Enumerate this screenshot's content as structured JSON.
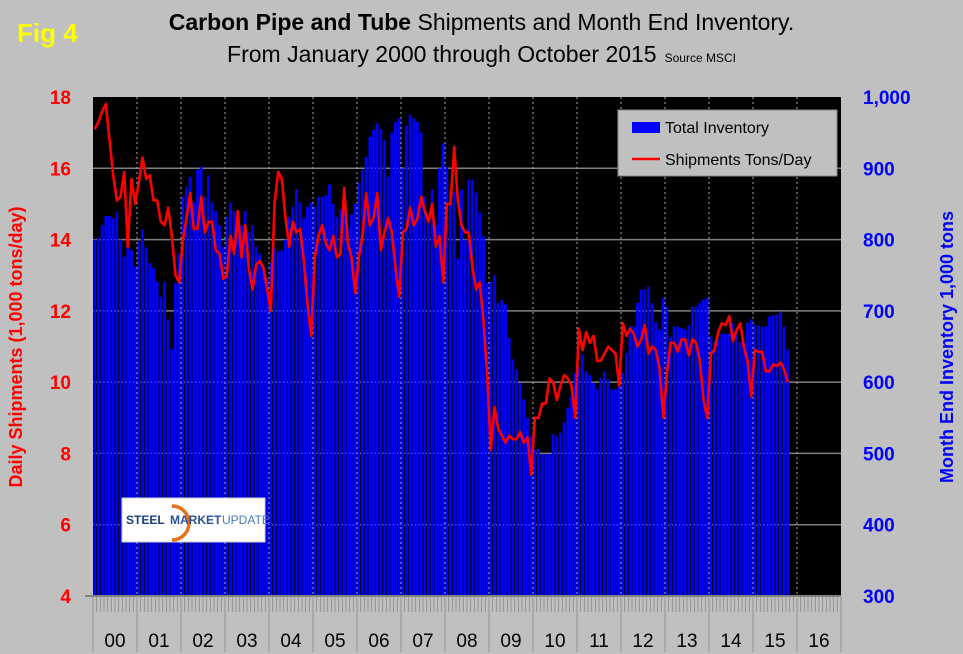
{
  "fig_label": "Fig 4",
  "chart_data": {
    "type": "bar+line",
    "title_bold": "Carbon Pipe and Tube",
    "title_rest": "Shipments and Month End Inventory.",
    "subtitle": "From January 2000 through October 2015",
    "source": "Source MSCI",
    "ylabel_left": "Daily Shipments (1,000 tons/day)",
    "ylabel_right": "Month End Inventory 1,000 tons",
    "ylim_left": [
      4,
      18
    ],
    "yticks_left": [
      "4",
      "6",
      "8",
      "10",
      "12",
      "14",
      "16",
      "18"
    ],
    "ylim_right": [
      300,
      1000
    ],
    "yticks_right": [
      "300",
      "400",
      "500",
      "600",
      "700",
      "800",
      "900",
      "1,000"
    ],
    "x_tick_labels": [
      "00",
      "01",
      "02",
      "03",
      "04",
      "05",
      "06",
      "07",
      "08",
      "09",
      "10",
      "11",
      "12",
      "13",
      "14",
      "15",
      "16"
    ],
    "x_start": "2000-01",
    "x_end": "2015-10",
    "grid": true,
    "legend_position": "top-right",
    "colors": {
      "inventory": "#0000ff",
      "shipments": "#ff0000",
      "plot_bg": "#000000",
      "page_bg": "#c0c0c0",
      "left_axis": "#ff0000",
      "right_axis": "#0000ff"
    },
    "series": [
      {
        "name": "Total Inventory",
        "type": "bar",
        "axis": "right",
        "values": [
          800,
          803,
          820,
          833,
          833,
          830,
          838,
          800,
          776,
          790,
          785,
          762,
          797,
          814,
          789,
          767,
          760,
          741,
          720,
          741,
          688,
          646,
          739,
          780,
          860,
          874,
          888,
          852,
          898,
          902,
          860,
          890,
          852,
          840,
          820,
          790,
          832,
          852,
          840,
          825,
          820,
          840,
          810,
          820,
          790,
          780,
          760,
          746,
          767,
          789,
          783,
          785,
          800,
          832,
          846,
          870,
          852,
          830,
          846,
          852,
          846,
          860,
          860,
          862,
          877,
          850,
          832,
          842,
          842,
          815,
          835,
          850,
          880,
          898,
          916,
          944,
          954,
          963,
          955,
          940,
          888,
          950,
          965,
          970,
          900,
          960,
          975,
          970,
          965,
          950,
          860,
          830,
          870,
          820,
          900,
          935,
          902,
          870,
          866,
          773,
          870,
          800,
          884,
          884,
          866,
          838,
          804,
          739,
          741,
          750,
          711,
          715,
          709,
          662,
          632,
          618,
          599,
          576,
          550,
          524,
          506,
          506,
          499,
          499,
          499,
          527,
          524,
          529,
          543,
          564,
          580,
          613,
          622,
          639,
          615,
          610,
          599,
          590,
          606,
          615,
          604,
          590,
          590,
          604,
          613,
          641,
          678,
          678,
          711,
          730,
          730,
          734,
          711,
          684,
          674,
          718,
          706,
          664,
          678,
          678,
          676,
          674,
          680,
          706,
          706,
          711,
          716,
          718,
          664,
          656,
          660,
          668,
          668,
          668,
          683,
          674,
          656,
          656,
          683,
          688,
          681,
          679,
          678,
          678,
          692,
          694,
          695,
          699,
          678,
          646
        ]
      },
      {
        "name": "Shipments Tons/Day",
        "type": "line",
        "axis": "left",
        "values": [
          17.1,
          17.3,
          17.6,
          17.8,
          16.8,
          15.8,
          15.1,
          15.2,
          15.9,
          13.8,
          15.7,
          15.0,
          15.6,
          16.3,
          15.7,
          15.8,
          15.1,
          15.1,
          14.5,
          14.4,
          14.9,
          14.1,
          13.0,
          12.8,
          14.0,
          14.6,
          15.3,
          14.3,
          14.3,
          15.2,
          14.2,
          14.5,
          14.5,
          13.7,
          13.6,
          12.9,
          13.0,
          14.1,
          13.6,
          14.8,
          13.5,
          14.4,
          13.2,
          12.6,
          13.3,
          13.4,
          13.2,
          12.6,
          12.0,
          15.0,
          15.9,
          15.7,
          14.6,
          13.8,
          14.5,
          14.2,
          14.3,
          13.4,
          12.2,
          11.3,
          13.5,
          14.1,
          14.4,
          13.9,
          13.7,
          14.1,
          13.5,
          13.6,
          15.45,
          13.9,
          13.5,
          12.5,
          13.5,
          14.1,
          15.3,
          14.4,
          14.6,
          15.3,
          13.7,
          14.2,
          14.6,
          14.2,
          13.2,
          12.4,
          14.2,
          14.3,
          14.9,
          14.4,
          14.6,
          15.2,
          14.8,
          14.5,
          15.0,
          13.8,
          14.1,
          12.8,
          15.0,
          15.0,
          16.6,
          15.1,
          14.4,
          14.2,
          14.2,
          13.2,
          12.6,
          12.8,
          11.7,
          10.2,
          8.1,
          9.3,
          8.7,
          8.5,
          8.3,
          8.5,
          8.4,
          8.4,
          8.6,
          8.3,
          8.45,
          7.4,
          9.0,
          9.0,
          9.4,
          9.4,
          10.1,
          10.0,
          9.5,
          9.9,
          10.2,
          10.1,
          9.9,
          9.0,
          11.5,
          10.9,
          11.4,
          11.1,
          11.3,
          10.6,
          10.6,
          10.8,
          11.0,
          10.9,
          10.8,
          9.9,
          11.65,
          11.3,
          11.5,
          11.35,
          11.0,
          11.2,
          11.6,
          10.8,
          11.0,
          10.9,
          10.4,
          9.0,
          10.2,
          11.1,
          11.1,
          10.85,
          11.2,
          11.2,
          10.75,
          11.2,
          11.1,
          10.6,
          9.5,
          9.0,
          10.8,
          10.9,
          11.4,
          11.65,
          11.6,
          11.85,
          11.15,
          11.45,
          11.65,
          11.0,
          10.6,
          9.6,
          10.9,
          10.85,
          10.85,
          10.3,
          10.3,
          10.5,
          10.45,
          10.55,
          10.35,
          10.0
        ]
      }
    ]
  },
  "logo": {
    "word1": "STEEL",
    "word2": "MARKET",
    "word3": "UPDATE"
  }
}
